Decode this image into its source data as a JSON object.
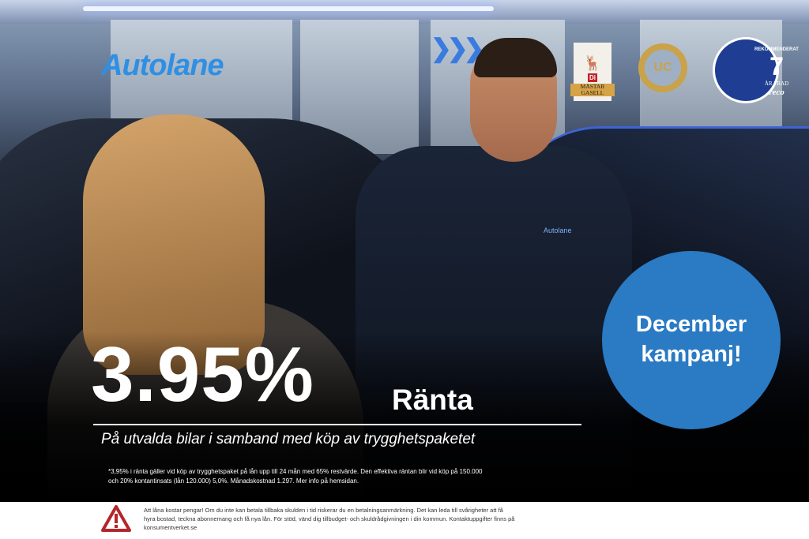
{
  "brand": {
    "name": "Autolane",
    "jacket_logo": "Autolane"
  },
  "badges": {
    "gasell": {
      "di": "Di",
      "line1": "MÄSTAR",
      "line2": "GASELL"
    },
    "uc": {
      "text": "UC"
    },
    "reco": {
      "top": "REKOMMENDERAT",
      "number": "7",
      "subtitle": "ÅR I RAD",
      "brand": "reco"
    }
  },
  "offer": {
    "rate": "3.95%",
    "rate_label": "Ränta",
    "subline": "På utvalda bilar i samband med köp av trygghetspaketet",
    "disclaimer": "*3,95% i ränta gäller vid köp av trygghetspaket på lån upp till 24 mån med 65% restvärde. Den effektiva räntan blir vid köp på 150.000 och 20% kontantinsats (lån 120.000) 5,0%. Månadskostnad 1.297. Mer info på hemsidan."
  },
  "promo": {
    "line1": "December",
    "line2": "kampanj!",
    "color": "#2a7ac4"
  },
  "warning": {
    "icon": "warning-triangle-icon",
    "color": "#b3262b",
    "text": "Att låna kostar pengar! Om du inte kan betala tillbaka skulden i tid riskerar du en betalningsanmärkning. Det kan leda till svårigheter att få hyra bostad, teckna abonnemang och få nya lån. För stöd, vänd dig tillbudget- och skuldrådgivningen i din kommun. Kontaktuppgifter finns på konsumentverket.se"
  }
}
